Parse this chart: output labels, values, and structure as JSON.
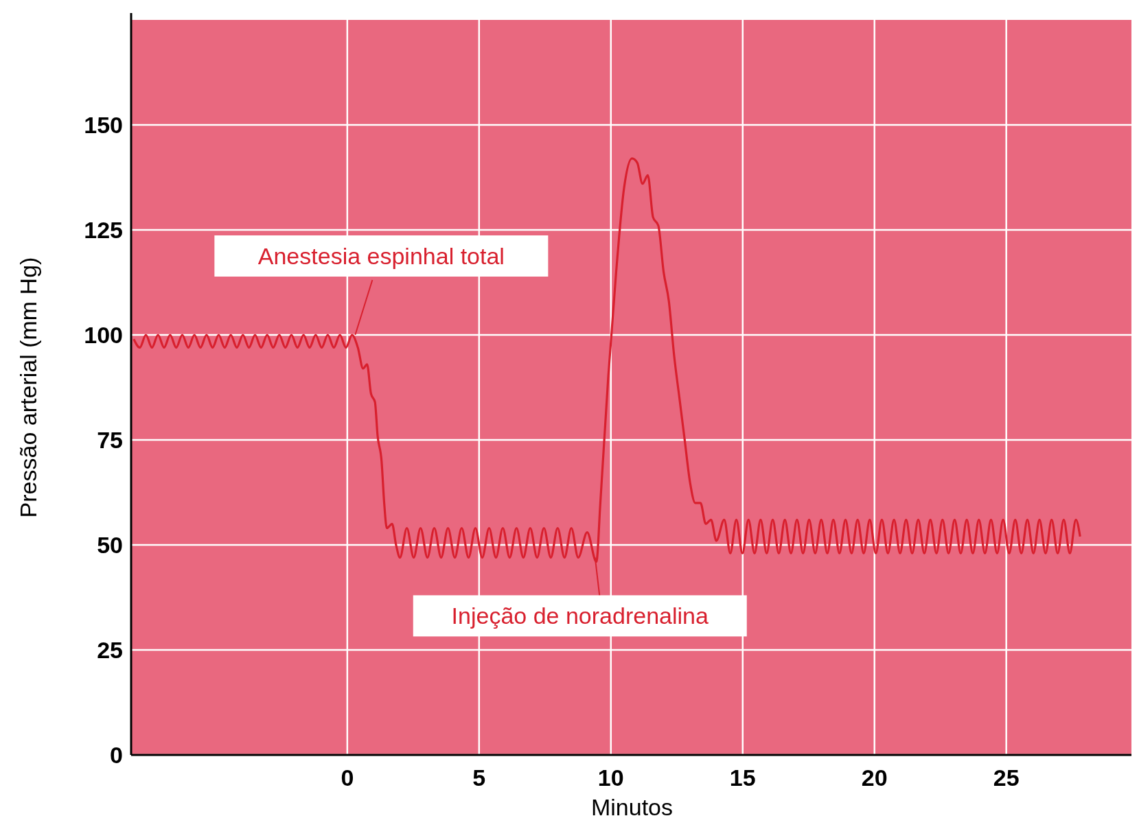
{
  "chart_data": {
    "type": "line",
    "xlabel": "Minutos",
    "ylabel": "Pressão arterial (mm Hg)",
    "xlim": [
      -8.2,
      29.8
    ],
    "ylim": [
      0,
      175
    ],
    "xticks": [
      0,
      5,
      10,
      15,
      20,
      25
    ],
    "yticks": [
      0,
      25,
      50,
      75,
      100,
      125,
      150
    ],
    "grid": true,
    "marker": "none",
    "line_style": "solid",
    "series": [
      {
        "color": "#d8202e",
        "x": [
          -8.1,
          -7.87,
          -7.64,
          -7.41,
          -7.18,
          -6.95,
          -6.72,
          -6.49,
          -6.26,
          -6.03,
          -5.8,
          -5.57,
          -5.34,
          -5.11,
          -4.88,
          -4.65,
          -4.42,
          -4.19,
          -3.96,
          -3.73,
          -3.5,
          -3.27,
          -3.04,
          -2.81,
          -2.58,
          -2.35,
          -2.12,
          -1.89,
          -1.66,
          -1.43,
          -1.2,
          -0.97,
          -0.74,
          -0.51,
          -0.28,
          -0.05,
          0.18,
          0.4,
          0.6,
          0.75,
          0.9,
          1.05,
          1.15,
          1.3,
          1.4,
          1.5,
          1.7,
          1.85,
          2.0,
          2.26,
          2.52,
          2.78,
          3.04,
          3.3,
          3.56,
          3.82,
          4.08,
          4.34,
          4.6,
          4.86,
          5.12,
          5.38,
          5.64,
          5.9,
          6.16,
          6.42,
          6.68,
          6.94,
          7.2,
          7.46,
          7.72,
          7.98,
          8.24,
          8.5,
          8.76,
          9.1,
          9.45,
          9.6,
          9.9,
          10.2,
          10.5,
          10.8,
          11.0,
          11.2,
          11.4,
          11.6,
          11.8,
          12.0,
          12.2,
          12.4,
          12.6,
          12.8,
          13.0,
          13.2,
          13.4,
          13.6,
          13.8,
          14.0,
          14.3,
          14.53,
          14.76,
          14.99,
          15.22,
          15.45,
          15.68,
          15.91,
          16.14,
          16.37,
          16.6,
          16.83,
          17.06,
          17.29,
          17.52,
          17.75,
          17.98,
          18.21,
          18.44,
          18.67,
          18.9,
          19.13,
          19.36,
          19.59,
          19.82,
          20.05,
          20.28,
          20.51,
          20.74,
          20.97,
          21.2,
          21.43,
          21.66,
          21.89,
          22.12,
          22.35,
          22.58,
          22.81,
          23.04,
          23.27,
          23.5,
          23.73,
          23.96,
          24.19,
          24.42,
          24.65,
          24.88,
          25.11,
          25.34,
          25.57,
          25.8,
          26.03,
          26.26,
          26.49,
          26.72,
          26.95,
          27.18,
          27.41,
          27.64,
          27.8
        ],
        "values": [
          99,
          97,
          100,
          97,
          100,
          97,
          100,
          97,
          100,
          97,
          100,
          97,
          100,
          97,
          100,
          97,
          100,
          97,
          100,
          97,
          100,
          97,
          100,
          97,
          100,
          97,
          100,
          97,
          100,
          97,
          100,
          97,
          100,
          97,
          100,
          97,
          100,
          97,
          92,
          93,
          86,
          84,
          76,
          70,
          60,
          54,
          55,
          50,
          47,
          54,
          47,
          54,
          47,
          54,
          47,
          54,
          47,
          54,
          47,
          54,
          47,
          54,
          47,
          54,
          47,
          54,
          47,
          54,
          47,
          54,
          47,
          54,
          47,
          54,
          47,
          53,
          46,
          60,
          90,
          115,
          135,
          142,
          141,
          136,
          138,
          128,
          126,
          115,
          108,
          95,
          85,
          75,
          65,
          60,
          60,
          55,
          56,
          51,
          56,
          48,
          56,
          48,
          56,
          48,
          56,
          48,
          56,
          48,
          56,
          48,
          56,
          48,
          56,
          48,
          56,
          48,
          56,
          48,
          56,
          48,
          56,
          48,
          56,
          48,
          56,
          48,
          56,
          48,
          56,
          48,
          56,
          48,
          56,
          48,
          56,
          48,
          56,
          48,
          56,
          48,
          56,
          48,
          56,
          48,
          56,
          48,
          56,
          48,
          56,
          48,
          56,
          48,
          56,
          48,
          56,
          48,
          56,
          52
        ]
      }
    ],
    "annotations": [
      {
        "text": "Anestesia espinhal total",
        "x": 0.3,
        "y": 100
      },
      {
        "text": "Injeção de noradrenalina",
        "x": 9.4,
        "y": 47
      }
    ]
  }
}
